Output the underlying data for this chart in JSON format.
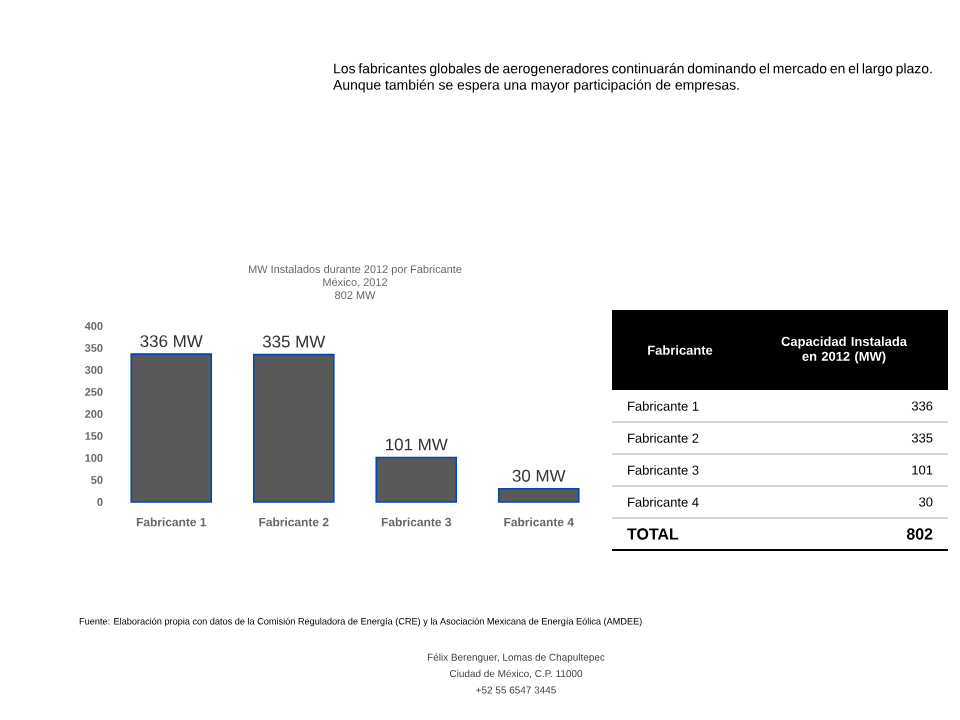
{
  "chart_data": {
    "type": "bar",
    "title": "MW Instalados durante 2012 por Fabricante",
    "subtitle": "México, 2012",
    "categories": [
      "Fabricante 1",
      "Fabricante 2",
      "Fabricante 3",
      "Fabricante 4"
    ],
    "values": [
      336,
      335,
      101,
      30
    ],
    "value_labels": [
      "336 MW",
      "335 MW",
      "101 MW",
      "30 MW"
    ],
    "color": "#595959",
    "ylim": [
      0,
      400
    ],
    "yticks": [
      0,
      50,
      100,
      150,
      200,
      250,
      300,
      350,
      400
    ],
    "annotations": [
      "Los fabricantes globales de aerogeneradores continuarán dominando el mercado en el largo plazo. Aunque también se espera una mayor participación de empresas.",
      "802 MW",
      "Fabricante",
      "Capacidad Instalada en 2012 (MW)",
      "TOTAL",
      "802",
      "Fuente: Elaboración propia con datos de la Comisión Reguladora de Energía (CRE) y la Asociación Mexicana de Energía Eólica (AMDEE)",
      "Félix Berenguer,  Lomas de Chapultepec",
      "Ciudad de México, C.P. 11000",
      "+52 55 6547 3445",
      "336",
      "335",
      "101",
      "30"
    ]
  }
}
